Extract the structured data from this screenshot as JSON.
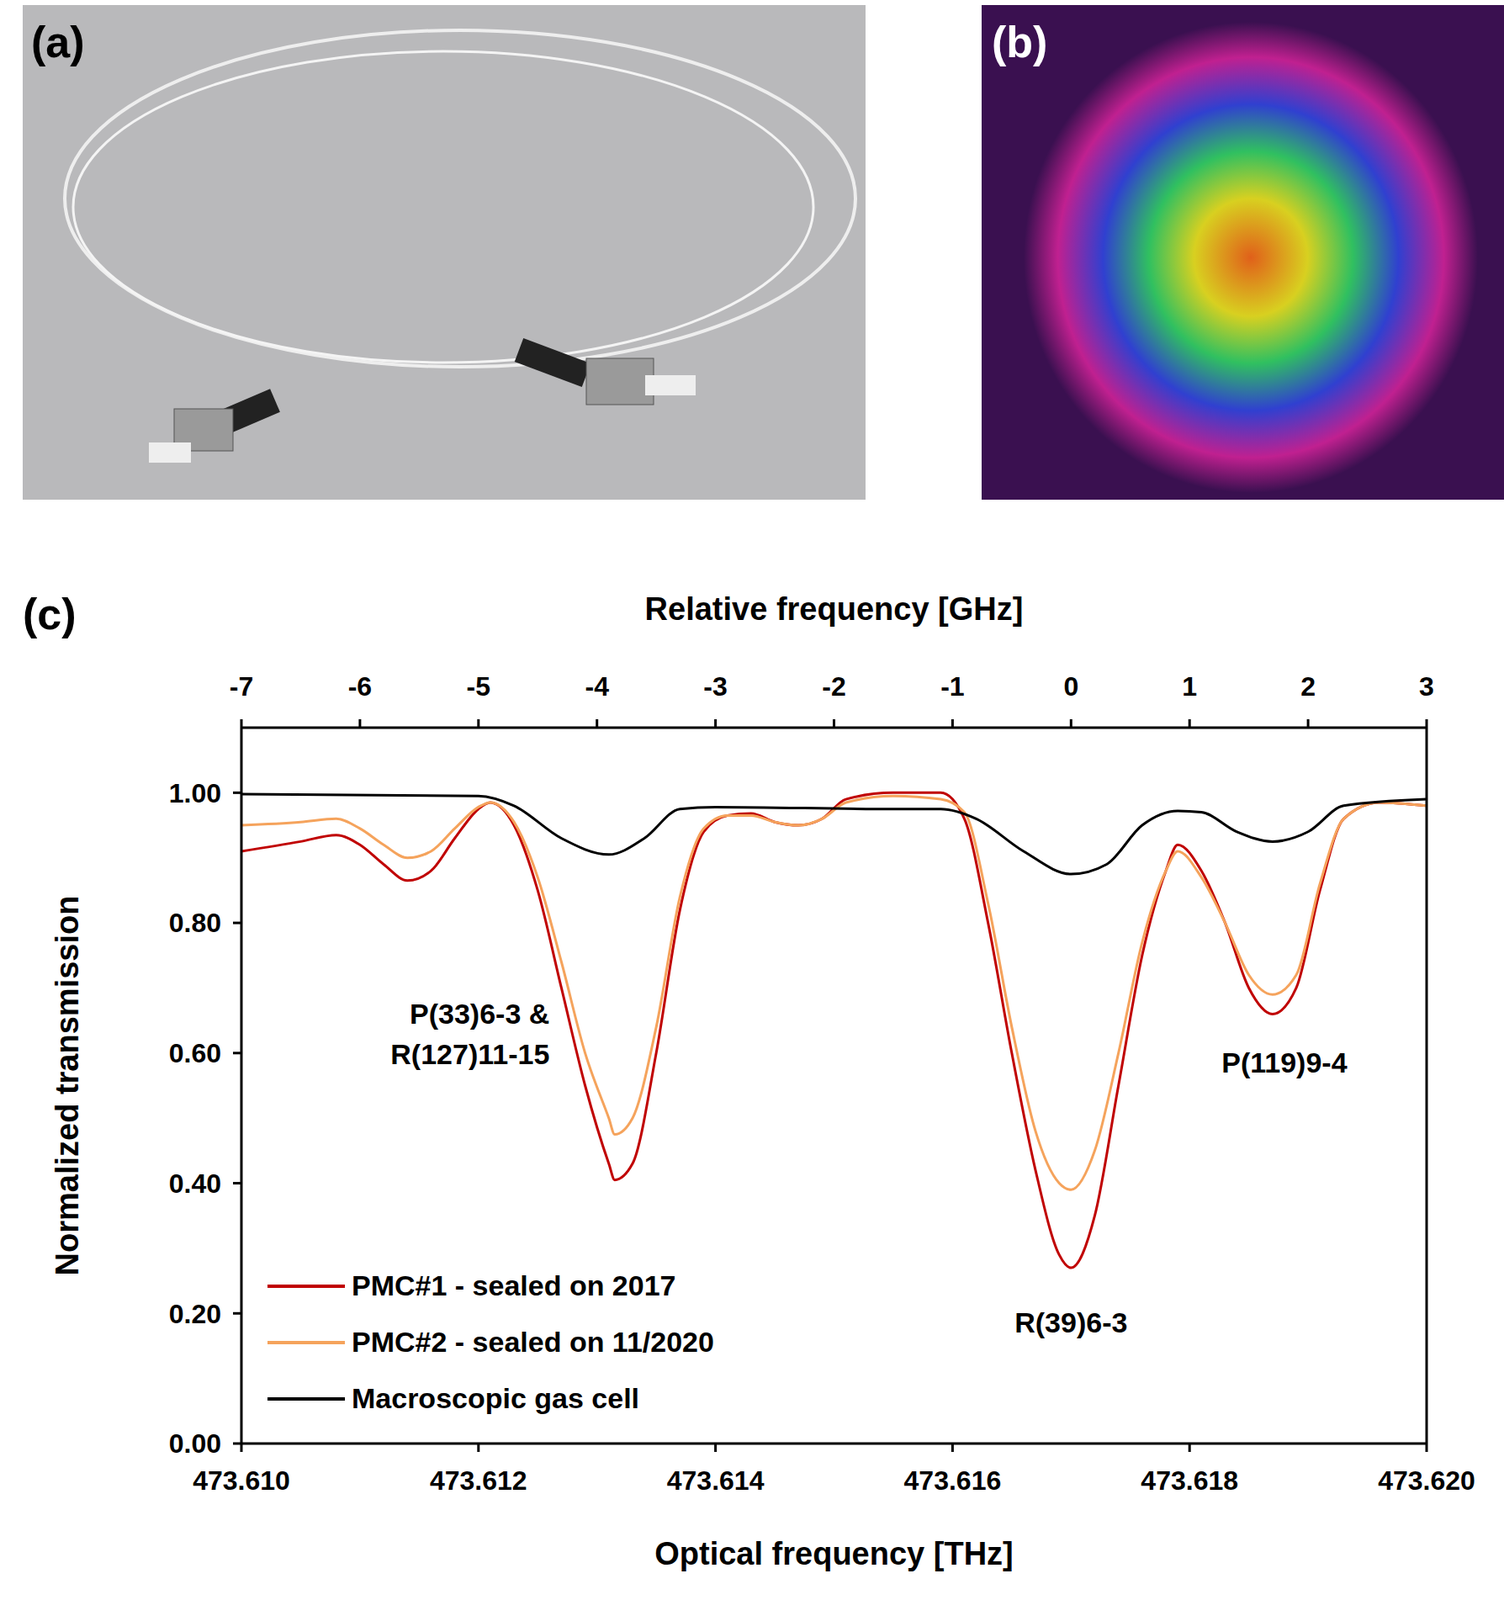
{
  "panel_labels": [
    "(a)",
    "(b)",
    "(c)"
  ],
  "chart_data": {
    "type": "line",
    "xlabel": "Optical frequency [THz]",
    "ylabel": "Normalized transmission",
    "x2label": "Relative frequency [GHz]",
    "xlim": [
      473.61,
      473.62
    ],
    "xticks": [
      {
        "value": 473.61,
        "label": "473.610"
      },
      {
        "value": 473.612,
        "label": "473.612"
      },
      {
        "value": 473.614,
        "label": "473.614"
      },
      {
        "value": 473.616,
        "label": "473.616"
      },
      {
        "value": 473.618,
        "label": "473.618"
      },
      {
        "value": 473.62,
        "label": "473.620"
      }
    ],
    "x2lim": [
      -7,
      3
    ],
    "x2ticks": [
      -7,
      -6,
      -5,
      -4,
      -3,
      -2,
      -1,
      0,
      1,
      2,
      3
    ],
    "ylim": [
      0,
      1.1
    ],
    "yticks": [
      {
        "value": 0,
        "label": "0.00"
      },
      {
        "value": 0.2,
        "label": "0.20"
      },
      {
        "value": 0.4,
        "label": "0.40"
      },
      {
        "value": 0.6,
        "label": "0.60"
      },
      {
        "value": 0.8,
        "label": "0.80"
      },
      {
        "value": 1.0,
        "label": "1.00"
      }
    ],
    "grid": false,
    "legend": "lower left",
    "series": [
      {
        "name": "PMC#1 - sealed on 2017",
        "color": "#c00000",
        "x": [
          473.61,
          473.6105,
          473.6108,
          473.611,
          473.6112,
          473.6114,
          473.6116,
          473.6118,
          473.612,
          473.6121,
          473.6123,
          473.6125,
          473.6127,
          473.6129,
          473.6131,
          473.61315,
          473.6133,
          473.6135,
          473.6137,
          473.6139,
          473.6141,
          473.6143,
          473.6145,
          473.6147,
          473.6149,
          473.6151,
          473.6155,
          473.6159,
          473.6161,
          473.6163,
          473.6165,
          473.6167,
          473.6169,
          473.617,
          473.6172,
          473.6174,
          473.6176,
          473.6178,
          473.6179,
          473.6181,
          473.6183,
          473.6185,
          473.6187,
          473.6189,
          473.6191,
          473.6193,
          473.6196,
          473.62
        ],
        "values": [
          0.91,
          0.925,
          0.935,
          0.92,
          0.89,
          0.865,
          0.88,
          0.93,
          0.975,
          0.985,
          0.95,
          0.85,
          0.7,
          0.55,
          0.43,
          0.405,
          0.43,
          0.6,
          0.82,
          0.94,
          0.965,
          0.968,
          0.955,
          0.95,
          0.96,
          0.99,
          1.0,
          1.0,
          0.96,
          0.8,
          0.6,
          0.42,
          0.29,
          0.27,
          0.35,
          0.55,
          0.75,
          0.88,
          0.92,
          0.88,
          0.8,
          0.7,
          0.66,
          0.7,
          0.85,
          0.96,
          0.985,
          0.98
        ]
      },
      {
        "name": "PMC#2 - sealed on 11/2020",
        "color": "#f5a35c",
        "x": [
          473.61,
          473.6105,
          473.6108,
          473.611,
          473.6112,
          473.6114,
          473.6116,
          473.6118,
          473.612,
          473.6121,
          473.6123,
          473.6125,
          473.6127,
          473.6129,
          473.6131,
          473.61315,
          473.6133,
          473.6135,
          473.6137,
          473.6139,
          473.6141,
          473.6143,
          473.6145,
          473.6147,
          473.6149,
          473.6151,
          473.6155,
          473.6159,
          473.6161,
          473.6163,
          473.6165,
          473.6167,
          473.6169,
          473.617,
          473.6172,
          473.6174,
          473.6176,
          473.6178,
          473.6179,
          473.6181,
          473.6183,
          473.6185,
          473.6187,
          473.6189,
          473.6191,
          473.6193,
          473.6196,
          473.62
        ],
        "values": [
          0.95,
          0.955,
          0.96,
          0.945,
          0.92,
          0.9,
          0.91,
          0.945,
          0.978,
          0.985,
          0.955,
          0.87,
          0.74,
          0.6,
          0.5,
          0.475,
          0.5,
          0.64,
          0.84,
          0.945,
          0.965,
          0.965,
          0.955,
          0.95,
          0.96,
          0.985,
          0.995,
          0.99,
          0.97,
          0.83,
          0.64,
          0.48,
          0.4,
          0.39,
          0.45,
          0.6,
          0.77,
          0.88,
          0.91,
          0.87,
          0.8,
          0.72,
          0.69,
          0.72,
          0.86,
          0.96,
          0.985,
          0.98
        ]
      },
      {
        "name": "Macroscopic gas cell",
        "color": "#000000",
        "x": [
          473.61,
          473.612,
          473.6123,
          473.6127,
          473.6131,
          473.6134,
          473.6137,
          473.614,
          473.6155,
          473.6159,
          473.6162,
          473.6166,
          473.617,
          473.6173,
          473.6176,
          473.6179,
          473.6181,
          473.6184,
          473.6187,
          473.619,
          473.6193,
          473.62
        ],
        "values": [
          0.998,
          0.995,
          0.98,
          0.93,
          0.905,
          0.93,
          0.975,
          0.978,
          0.975,
          0.975,
          0.96,
          0.91,
          0.875,
          0.89,
          0.95,
          0.972,
          0.97,
          0.94,
          0.925,
          0.94,
          0.98,
          0.99
        ]
      }
    ],
    "annotations": [
      {
        "lines": [
          "P(33)6-3 &",
          "R(127)11-15"
        ],
        "x": 473.6126,
        "y": 0.645,
        "anchor": "end"
      },
      {
        "lines": [
          "R(39)6-3"
        ],
        "x": 473.617,
        "y": 0.17,
        "anchor": "middle"
      },
      {
        "lines": [
          "P(119)9-4"
        ],
        "x": 473.6188,
        "y": 0.57,
        "anchor": "middle"
      }
    ]
  }
}
